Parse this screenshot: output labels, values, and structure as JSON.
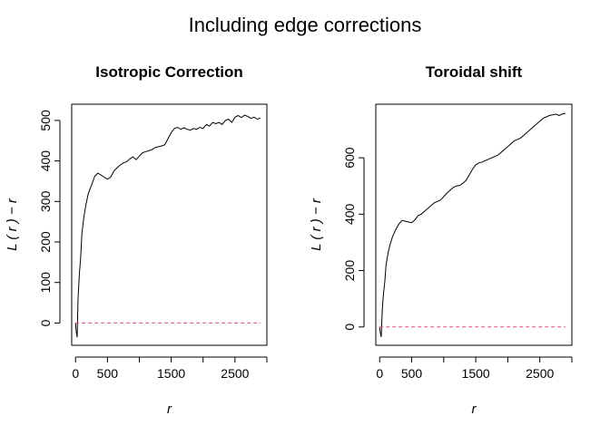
{
  "figure": {
    "title": "Including edge corrections"
  },
  "chart_data": [
    {
      "type": "line",
      "title": "Isotropic Correction",
      "xlabel": "r",
      "ylabel": "L ( r ) − r",
      "xlim": [
        -60,
        3000
      ],
      "ylim": [
        -55,
        540
      ],
      "xticks": [
        0,
        500,
        1000,
        1500,
        2000,
        2500,
        3000
      ],
      "xtick_labels": [
        "0",
        "500",
        "",
        "1500",
        "",
        "2500",
        ""
      ],
      "yticks": [
        0,
        100,
        200,
        300,
        400,
        500
      ],
      "ytick_labels": [
        "0",
        "100",
        "200",
        "300",
        "400",
        "500"
      ],
      "grid": false,
      "series": [
        {
          "style": "solid",
          "color": "#000000",
          "x": [
            0,
            10,
            25,
            40,
            60,
            80,
            100,
            130,
            160,
            200,
            250,
            300,
            350,
            400,
            450,
            500,
            550,
            600,
            650,
            700,
            750,
            800,
            850,
            900,
            950,
            1000,
            1050,
            1100,
            1150,
            1200,
            1250,
            1300,
            1350,
            1400,
            1450,
            1500,
            1550,
            1600,
            1650,
            1700,
            1750,
            1800,
            1850,
            1900,
            1950,
            2000,
            2050,
            2100,
            2150,
            2200,
            2250,
            2300,
            2350,
            2400,
            2450,
            2500,
            2550,
            2600,
            2650,
            2700,
            2750,
            2800,
            2850,
            2900
          ],
          "y": [
            0,
            -20,
            -35,
            60,
            120,
            160,
            220,
            260,
            290,
            320,
            340,
            362,
            370,
            365,
            360,
            355,
            360,
            375,
            383,
            390,
            395,
            398,
            405,
            410,
            403,
            412,
            420,
            423,
            425,
            428,
            433,
            435,
            437,
            440,
            455,
            470,
            480,
            483,
            478,
            482,
            478,
            476,
            480,
            478,
            483,
            480,
            490,
            486,
            495,
            492,
            495,
            490,
            500,
            503,
            495,
            508,
            512,
            507,
            513,
            510,
            505,
            508,
            503,
            506
          ]
        },
        {
          "style": "dashed",
          "color": "#DF536B",
          "x": [
            0,
            2900
          ],
          "y": [
            0,
            0
          ]
        }
      ]
    },
    {
      "type": "line",
      "title": "Toroidal shift",
      "xlabel": "r",
      "ylabel": "L ( r ) − r",
      "xlim": [
        -60,
        3000
      ],
      "ylim": [
        -65,
        790
      ],
      "xticks": [
        0,
        500,
        1000,
        1500,
        2000,
        2500,
        3000
      ],
      "xtick_labels": [
        "0",
        "500",
        "",
        "1500",
        "",
        "2500",
        ""
      ],
      "yticks": [
        0,
        200,
        400,
        600
      ],
      "ytick_labels": [
        "0",
        "200",
        "400",
        "600"
      ],
      "grid": false,
      "series": [
        {
          "style": "solid",
          "color": "#000000",
          "x": [
            0,
            10,
            25,
            40,
            60,
            80,
            100,
            130,
            160,
            200,
            250,
            300,
            350,
            400,
            450,
            500,
            550,
            600,
            650,
            700,
            750,
            800,
            850,
            900,
            950,
            1000,
            1050,
            1100,
            1150,
            1200,
            1250,
            1300,
            1350,
            1400,
            1450,
            1500,
            1550,
            1600,
            1650,
            1700,
            1750,
            1800,
            1850,
            1900,
            1950,
            2000,
            2050,
            2100,
            2150,
            2200,
            2250,
            2300,
            2350,
            2400,
            2450,
            2500,
            2550,
            2600,
            2650,
            2700,
            2750,
            2800,
            2850,
            2900
          ],
          "y": [
            0,
            -20,
            -35,
            60,
            120,
            160,
            220,
            260,
            290,
            320,
            345,
            365,
            378,
            375,
            372,
            370,
            380,
            395,
            400,
            410,
            420,
            430,
            440,
            445,
            450,
            462,
            475,
            485,
            495,
            500,
            502,
            510,
            520,
            540,
            560,
            575,
            582,
            585,
            590,
            595,
            600,
            605,
            610,
            620,
            630,
            640,
            650,
            660,
            665,
            670,
            680,
            690,
            700,
            710,
            720,
            730,
            740,
            745,
            750,
            752,
            755,
            750,
            755,
            758
          ]
        },
        {
          "style": "dashed",
          "color": "#DF536B",
          "x": [
            0,
            2900
          ],
          "y": [
            0,
            0
          ]
        }
      ]
    }
  ]
}
